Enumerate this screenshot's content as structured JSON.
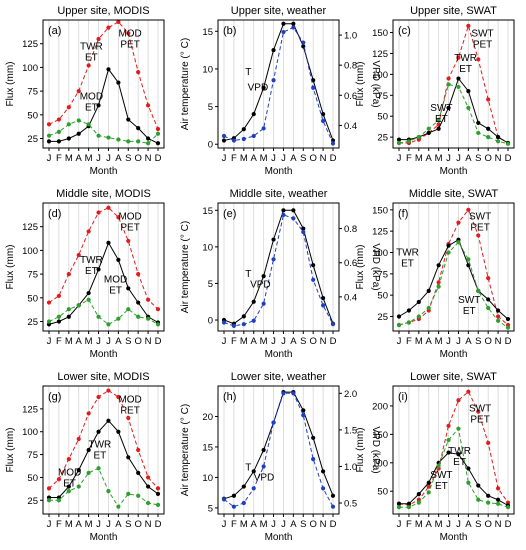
{
  "chart_data": [
    {
      "panel_label": "(a)",
      "title": "Upper site, MODIS",
      "type": "line",
      "x": [
        "J",
        "F",
        "M",
        "A",
        "M",
        "J",
        "J",
        "A",
        "S",
        "O",
        "N",
        "D"
      ],
      "xlabel": "Month",
      "ylabel": "Flux (mm)",
      "ylim": [
        15,
        150
      ],
      "yticks": [
        25,
        50,
        75,
        100,
        125
      ],
      "series": [
        {
          "name": "MOD PET",
          "label_lines": [
            "MOD",
            "PET"
          ],
          "color": "#e41a1c",
          "dash": "dash",
          "values": [
            40,
            45,
            58,
            75,
            102,
            130,
            142,
            148,
            136,
            95,
            60,
            35
          ]
        },
        {
          "name": "TWR ET",
          "label_lines": [
            "TWR",
            "ET"
          ],
          "color": "#000000",
          "dash": "solid",
          "values": [
            22,
            22,
            25,
            30,
            38,
            60,
            98,
            84,
            45,
            36,
            25,
            20
          ]
        },
        {
          "name": "MOD ET",
          "label_lines": [
            "MOD",
            "ET"
          ],
          "color": "#2ca02c",
          "dash": "dash",
          "values": [
            28,
            32,
            40,
            44,
            40,
            28,
            26,
            24,
            22,
            22,
            20,
            30
          ]
        }
      ]
    },
    {
      "panel_label": "(b)",
      "title": "Upper site, weather",
      "type": "line",
      "x": [
        "J",
        "F",
        "M",
        "A",
        "M",
        "J",
        "J",
        "A",
        "S",
        "O",
        "N",
        "D"
      ],
      "xlabel": "Month",
      "ylabel": "Air temperature (° C)",
      "y2label": "VPD (kPa)",
      "ylim": [
        -0.5,
        16.5
      ],
      "yticks": [
        0,
        5,
        10,
        15
      ],
      "y2lim": [
        0.25,
        1.1
      ],
      "y2ticks": [
        0.4,
        0.6,
        0.8,
        1.0
      ],
      "series": [
        {
          "name": "T",
          "label_lines": [
            "T"
          ],
          "color": "#000000",
          "dash": "solid",
          "axis": "left",
          "values": [
            0.5,
            0.8,
            2,
            4,
            7.5,
            12.5,
            16,
            16,
            13,
            8.5,
            4,
            0.5
          ]
        },
        {
          "name": "VPD",
          "label_lines": [
            "VPD"
          ],
          "color": "#1f3fbf",
          "dash": "dash",
          "axis": "right",
          "values": [
            0.33,
            0.3,
            0.31,
            0.33,
            0.38,
            0.7,
            1.02,
            1.05,
            0.95,
            0.65,
            0.43,
            0.28
          ]
        }
      ]
    },
    {
      "panel_label": "(c)",
      "title": "Upper site, SWAT",
      "type": "line",
      "x": [
        "J",
        "F",
        "M",
        "A",
        "M",
        "J",
        "J",
        "A",
        "S",
        "O",
        "N",
        "D"
      ],
      "xlabel": "Month",
      "ylabel": "Flux (mm)",
      "ylim": [
        12,
        165
      ],
      "yticks": [
        25,
        50,
        75,
        100,
        125,
        150
      ],
      "series": [
        {
          "name": "SWT PET",
          "label_lines": [
            "SWT",
            "PET"
          ],
          "color": "#e41a1c",
          "dash": "dash",
          "values": [
            18,
            18,
            22,
            30,
            40,
            95,
            120,
            158,
            118,
            70,
            25,
            18
          ]
        },
        {
          "name": "TWR ET",
          "label_lines": [
            "TWR",
            "ET"
          ],
          "color": "#000000",
          "dash": "solid",
          "values": [
            22,
            22,
            25,
            30,
            35,
            60,
            95,
            80,
            42,
            35,
            25,
            18
          ]
        },
        {
          "name": "SWT ET",
          "label_lines": [
            "SWT",
            "ET"
          ],
          "color": "#2ca02c",
          "dash": "dash",
          "values": [
            18,
            20,
            25,
            35,
            45,
            88,
            85,
            60,
            30,
            25,
            20,
            17
          ]
        }
      ]
    },
    {
      "panel_label": "(d)",
      "title": "Middle site, MODIS",
      "type": "line",
      "x": [
        "J",
        "F",
        "M",
        "A",
        "M",
        "J",
        "J",
        "A",
        "S",
        "O",
        "N",
        "D"
      ],
      "xlabel": "Month",
      "ylabel": "Flux (mm)",
      "ylim": [
        15,
        150
      ],
      "yticks": [
        25,
        50,
        75,
        100,
        125
      ],
      "series": [
        {
          "name": "MOD PET",
          "label_lines": [
            "MOD",
            "PET"
          ],
          "color": "#e41a1c",
          "dash": "dash",
          "values": [
            45,
            52,
            75,
            95,
            120,
            140,
            145,
            135,
            110,
            75,
            48,
            38
          ]
        },
        {
          "name": "TWR ET",
          "label_lines": [
            "TWR",
            "ET"
          ],
          "color": "#000000",
          "dash": "solid",
          "values": [
            22,
            25,
            30,
            42,
            55,
            80,
            108,
            90,
            60,
            45,
            30,
            24
          ]
        },
        {
          "name": "MOD ET",
          "label_lines": [
            "MOD",
            "ET"
          ],
          "color": "#2ca02c",
          "dash": "dash",
          "values": [
            25,
            30,
            38,
            42,
            48,
            30,
            22,
            28,
            38,
            30,
            28,
            22
          ]
        }
      ]
    },
    {
      "panel_label": "(e)",
      "title": "Middle site, weather",
      "type": "line",
      "x": [
        "J",
        "F",
        "M",
        "A",
        "M",
        "J",
        "J",
        "A",
        "S",
        "O",
        "N",
        "D"
      ],
      "xlabel": "Month",
      "ylabel": "Air temperature (° C)",
      "y2label": "VPD (kPa)",
      "ylim": [
        -1.5,
        16
      ],
      "yticks": [
        0,
        5,
        10,
        15
      ],
      "y2lim": [
        0.2,
        0.95
      ],
      "y2ticks": [
        0.4,
        0.6,
        0.8
      ],
      "series": [
        {
          "name": "T",
          "label_lines": [
            "T"
          ],
          "color": "#000000",
          "dash": "solid",
          "axis": "left",
          "values": [
            0,
            -0.5,
            0.5,
            2.5,
            6,
            11,
            15,
            15,
            12.5,
            7.5,
            3,
            -0.5
          ]
        },
        {
          "name": "VPD",
          "label_lines": [
            "VPD"
          ],
          "color": "#1f3fbf",
          "dash": "dash",
          "axis": "right",
          "values": [
            0.25,
            0.23,
            0.24,
            0.26,
            0.36,
            0.62,
            0.88,
            0.86,
            0.78,
            0.5,
            0.35,
            0.24
          ]
        }
      ]
    },
    {
      "panel_label": "(f)",
      "title": "Middle site, SWAT",
      "type": "line",
      "x": [
        "J",
        "F",
        "M",
        "A",
        "M",
        "J",
        "J",
        "A",
        "S",
        "O",
        "N",
        "D"
      ],
      "xlabel": "Month",
      "ylabel": "Flux (mm)",
      "ylim": [
        8,
        158
      ],
      "yticks": [
        25,
        50,
        75,
        100,
        125,
        150
      ],
      "series": [
        {
          "name": "SWT PET",
          "label_lines": [
            "SWT",
            "PET"
          ],
          "color": "#e41a1c",
          "dash": "dash",
          "values": [
            15,
            18,
            22,
            32,
            65,
            110,
            135,
            150,
            120,
            70,
            25,
            15
          ]
        },
        {
          "name": "TWR ET",
          "label_lines": [
            "TWR",
            "ET"
          ],
          "color": "#000000",
          "dash": "solid",
          "values": [
            25,
            32,
            42,
            55,
            85,
            108,
            115,
            85,
            55,
            45,
            32,
            22
          ]
        },
        {
          "name": "SWT ET",
          "label_lines": [
            "SWT",
            "ET"
          ],
          "color": "#2ca02c",
          "dash": "dash",
          "values": [
            15,
            18,
            25,
            35,
            60,
            100,
            112,
            92,
            55,
            35,
            20,
            12
          ]
        }
      ]
    },
    {
      "panel_label": "(g)",
      "title": "Lower site, MODIS",
      "type": "line",
      "x": [
        "J",
        "F",
        "M",
        "A",
        "M",
        "J",
        "J",
        "A",
        "S",
        "O",
        "N",
        "D"
      ],
      "xlabel": "Month",
      "ylabel": "Flux (mm)",
      "ylim": [
        10,
        150
      ],
      "yticks": [
        25,
        50,
        75,
        100,
        125
      ],
      "series": [
        {
          "name": "MOD PET",
          "label_lines": [
            "MOD",
            "PET"
          ],
          "color": "#e41a1c",
          "dash": "dash",
          "values": [
            38,
            48,
            70,
            92,
            120,
            138,
            145,
            138,
            115,
            80,
            50,
            38
          ]
        },
        {
          "name": "TWR ET",
          "label_lines": [
            "TWR",
            "ET"
          ],
          "color": "#000000",
          "dash": "solid",
          "values": [
            28,
            28,
            40,
            58,
            80,
            100,
            112,
            100,
            72,
            55,
            40,
            32
          ]
        },
        {
          "name": "MOD ET",
          "label_lines": [
            "MOD",
            "ET"
          ],
          "color": "#2ca02c",
          "dash": "dash",
          "values": [
            25,
            25,
            35,
            40,
            55,
            60,
            35,
            18,
            32,
            30,
            22,
            20
          ]
        }
      ]
    },
    {
      "panel_label": "(h)",
      "title": "Lower site, weather",
      "type": "line",
      "x": [
        "J",
        "F",
        "M",
        "A",
        "M",
        "J",
        "J",
        "A",
        "S",
        "O",
        "N",
        "D"
      ],
      "xlabel": "Month",
      "ylabel": "Air temperature (° C)",
      "y2label": "VPD (kPa)",
      "ylim": [
        4,
        25
      ],
      "yticks": [
        5,
        10,
        15,
        20
      ],
      "y2lim": [
        0.35,
        2.1
      ],
      "y2ticks": [
        0.5,
        1.0,
        1.5,
        2.0
      ],
      "series": [
        {
          "name": "T",
          "label_lines": [
            "T"
          ],
          "color": "#000000",
          "dash": "solid",
          "axis": "left",
          "values": [
            6.5,
            7,
            8.5,
            11,
            14.5,
            19,
            24,
            24,
            21,
            16.5,
            11,
            7
          ]
        },
        {
          "name": "VPD",
          "label_lines": [
            "VPD"
          ],
          "color": "#1f3fbf",
          "dash": "dash",
          "axis": "right",
          "values": [
            0.55,
            0.45,
            0.5,
            0.7,
            1.0,
            1.6,
            2.0,
            2.0,
            1.7,
            1.1,
            0.7,
            0.45
          ]
        }
      ]
    },
    {
      "panel_label": "(i)",
      "title": "Lower site, SWAT",
      "type": "line",
      "x": [
        "J",
        "F",
        "M",
        "A",
        "M",
        "J",
        "J",
        "A",
        "S",
        "O",
        "N",
        "D"
      ],
      "xlabel": "Month",
      "ylabel": "Flux (mm)",
      "ylim": [
        10,
        235
      ],
      "yticks": [
        50,
        100,
        150,
        200
      ],
      "series": [
        {
          "name": "SWT PET",
          "label_lines": [
            "SWT",
            "PET"
          ],
          "color": "#e41a1c",
          "dash": "dash",
          "values": [
            28,
            26,
            35,
            58,
            90,
            165,
            210,
            225,
            190,
            135,
            55,
            30
          ]
        },
        {
          "name": "TWR ET",
          "label_lines": [
            "TWR",
            "ET"
          ],
          "color": "#000000",
          "dash": "solid",
          "values": [
            28,
            28,
            45,
            65,
            100,
            118,
            115,
            90,
            60,
            42,
            35,
            25
          ]
        },
        {
          "name": "SWT ET",
          "label_lines": [
            "SWT",
            "ET"
          ],
          "color": "#2ca02c",
          "dash": "dash",
          "values": [
            22,
            22,
            30,
            48,
            95,
            140,
            160,
            65,
            35,
            30,
            28,
            22
          ]
        }
      ]
    }
  ]
}
